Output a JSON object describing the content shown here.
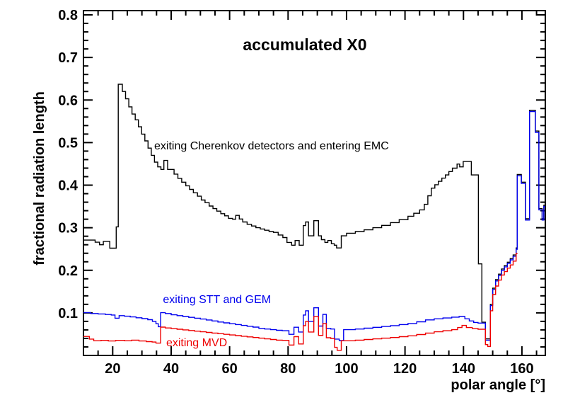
{
  "chart_data": {
    "type": "line",
    "subtype": "step-histogram",
    "title": "accumulated X0",
    "xlabel": "polar angle [°]",
    "ylabel": "fractional radiation length",
    "xlim": [
      10,
      168
    ],
    "ylim": [
      0,
      0.81
    ],
    "grid": false,
    "x_major_ticks": [
      20,
      40,
      60,
      80,
      100,
      120,
      140,
      160
    ],
    "x_minor_start": 15,
    "x_minor_step": 5,
    "x_minor_end": 165,
    "y_major_ticks": [
      0.1,
      0.2,
      0.3,
      0.4,
      0.5,
      0.6,
      0.7,
      0.8
    ],
    "y_minor_step": 0.02,
    "colors": {
      "black": "#000000",
      "blue": "#0000ee",
      "red": "#ee0000"
    },
    "series": [
      {
        "name": "exiting Cherenkov detectors and entering EMC",
        "color": "#000000",
        "xend": 168,
        "steps": [
          [
            10,
            0.271
          ],
          [
            14,
            0.266
          ],
          [
            15.5,
            0.26
          ],
          [
            16.8,
            0.268
          ],
          [
            19,
            0.252
          ],
          [
            21.2,
            0.302
          ],
          [
            21.9,
            0.637
          ],
          [
            23.3,
            0.62
          ],
          [
            24.4,
            0.603
          ],
          [
            25.5,
            0.584
          ],
          [
            26.6,
            0.567
          ],
          [
            27.7,
            0.5535
          ],
          [
            28.8,
            0.537
          ],
          [
            29.9,
            0.52
          ],
          [
            31,
            0.504
          ],
          [
            32.1,
            0.487
          ],
          [
            33.2,
            0.47
          ],
          [
            34.3,
            0.454
          ],
          [
            35.4,
            0.443
          ],
          [
            36.5,
            0.437
          ],
          [
            37.5,
            0.458
          ],
          [
            38.8,
            0.437
          ],
          [
            41,
            0.426
          ],
          [
            42.3,
            0.416
          ],
          [
            43.6,
            0.407
          ],
          [
            45,
            0.3985
          ],
          [
            46.3,
            0.39
          ],
          [
            47.6,
            0.382
          ],
          [
            49,
            0.374
          ],
          [
            50.3,
            0.365
          ],
          [
            51.6,
            0.359
          ],
          [
            53,
            0.351
          ],
          [
            54.3,
            0.345
          ],
          [
            55.6,
            0.339
          ],
          [
            57,
            0.333
          ],
          [
            58.3,
            0.328
          ],
          [
            59.6,
            0.322
          ],
          [
            61,
            0.32
          ],
          [
            62.1,
            0.329
          ],
          [
            63.3,
            0.3205
          ],
          [
            64.5,
            0.3135
          ],
          [
            66,
            0.308
          ],
          [
            67.5,
            0.304
          ],
          [
            69,
            0.3
          ],
          [
            70.5,
            0.297
          ],
          [
            72,
            0.294
          ],
          [
            73.5,
            0.291
          ],
          [
            75,
            0.289
          ],
          [
            76.6,
            0.283
          ],
          [
            78.2,
            0.277
          ],
          [
            79.6,
            0.2655
          ],
          [
            81.2,
            0.259
          ],
          [
            82.4,
            0.27
          ],
          [
            83.8,
            0.259
          ],
          [
            85.2,
            0.305
          ],
          [
            86,
            0.3135
          ],
          [
            87,
            0.281
          ],
          [
            88.8,
            0.3165
          ],
          [
            90.4,
            0.281
          ],
          [
            91.4,
            0.272
          ],
          [
            92.6,
            0.2655
          ],
          [
            93.6,
            0.27
          ],
          [
            94.8,
            0.2625
          ],
          [
            95.8,
            0.259
          ],
          [
            96.6,
            0.2525
          ],
          [
            98.2,
            0.281
          ],
          [
            100,
            0.287
          ],
          [
            103,
            0.291
          ],
          [
            106,
            0.295
          ],
          [
            109,
            0.3
          ],
          [
            112,
            0.3055
          ],
          [
            115,
            0.312
          ],
          [
            118,
            0.319
          ],
          [
            121,
            0.327
          ],
          [
            123,
            0.334
          ],
          [
            125,
            0.342
          ],
          [
            126.6,
            0.355
          ],
          [
            127.8,
            0.375
          ],
          [
            129,
            0.393
          ],
          [
            130.2,
            0.401
          ],
          [
            131.4,
            0.409
          ],
          [
            132.6,
            0.4165
          ],
          [
            133.8,
            0.424
          ],
          [
            135,
            0.432
          ],
          [
            136.2,
            0.44
          ],
          [
            137.8,
            0.4495
          ],
          [
            138.7,
            0.443
          ],
          [
            139.9,
            0.4555
          ],
          [
            142.7,
            0.424
          ],
          [
            145.1,
            0.215
          ],
          [
            146.3,
            0.078
          ],
          [
            147.5,
            0.039
          ],
          [
            149.2,
            0.12
          ],
          [
            150,
            0.158
          ],
          [
            151,
            0.178
          ],
          [
            152,
            0.191
          ],
          [
            153,
            0.203
          ],
          [
            154,
            0.211
          ],
          [
            155,
            0.219
          ],
          [
            156,
            0.2275
          ],
          [
            157,
            0.236
          ],
          [
            158,
            0.2525
          ],
          [
            158.4,
            0.425
          ],
          [
            159.8,
            0.407
          ],
          [
            161.2,
            0.321
          ],
          [
            162.6,
            0.576
          ],
          [
            164.6,
            0.527
          ],
          [
            165.8,
            0.345
          ],
          [
            166.9,
            0.321
          ],
          [
            167.5,
            0.353
          ]
        ]
      },
      {
        "name": "exiting STT and GEM",
        "color": "#0000ee",
        "xend": 168,
        "steps": [
          [
            10,
            0.1005
          ],
          [
            12.5,
            0.0985
          ],
          [
            15,
            0.0975
          ],
          [
            17.5,
            0.0962
          ],
          [
            19.5,
            0.095
          ],
          [
            20.8,
            0.0875
          ],
          [
            22.2,
            0.0935
          ],
          [
            24,
            0.0922
          ],
          [
            26,
            0.0905
          ],
          [
            28,
            0.0885
          ],
          [
            30,
            0.0865
          ],
          [
            32,
            0.084
          ],
          [
            33.6,
            0.08
          ],
          [
            34.8,
            0.0745
          ],
          [
            35.6,
            0.0675
          ],
          [
            36.4,
            0.1005
          ],
          [
            38,
            0.0985
          ],
          [
            40,
            0.0955
          ],
          [
            42,
            0.0935
          ],
          [
            44,
            0.0915
          ],
          [
            46,
            0.0895
          ],
          [
            48,
            0.0875
          ],
          [
            50,
            0.0855
          ],
          [
            52,
            0.0833
          ],
          [
            54,
            0.081
          ],
          [
            56,
            0.0785
          ],
          [
            58,
            0.0765
          ],
          [
            60,
            0.0745
          ],
          [
            62,
            0.0725
          ],
          [
            64,
            0.0705
          ],
          [
            66,
            0.0685
          ],
          [
            68,
            0.0665
          ],
          [
            70,
            0.0635
          ],
          [
            72,
            0.062
          ],
          [
            74,
            0.0605
          ],
          [
            76,
            0.059
          ],
          [
            78,
            0.058
          ],
          [
            80.3,
            0.0495
          ],
          [
            82,
            0.0662
          ],
          [
            83.6,
            0.055
          ],
          [
            85.2,
            0.095
          ],
          [
            86,
            0.105
          ],
          [
            87,
            0.08
          ],
          [
            88.8,
            0.112
          ],
          [
            90.4,
            0.069
          ],
          [
            91.9,
            0.0965
          ],
          [
            93.1,
            0.0635
          ],
          [
            94.6,
            0.062
          ],
          [
            95.9,
            0.0385
          ],
          [
            97.5,
            0.035
          ],
          [
            99,
            0.0605
          ],
          [
            103,
            0.062
          ],
          [
            106,
            0.064
          ],
          [
            109,
            0.066
          ],
          [
            112,
            0.068
          ],
          [
            115,
            0.07
          ],
          [
            118,
            0.0725
          ],
          [
            121,
            0.075
          ],
          [
            124,
            0.079
          ],
          [
            127,
            0.0835
          ],
          [
            130,
            0.086
          ],
          [
            133,
            0.088
          ],
          [
            136,
            0.09
          ],
          [
            138.5,
            0.0915
          ],
          [
            140.5,
            0.086
          ],
          [
            142,
            0.081
          ],
          [
            143.5,
            0.0775
          ],
          [
            145,
            0.076
          ],
          [
            147.5,
            0.036
          ],
          [
            149.2,
            0.117
          ],
          [
            150,
            0.155
          ],
          [
            151,
            0.175
          ],
          [
            152,
            0.188
          ],
          [
            153,
            0.2
          ],
          [
            154,
            0.208
          ],
          [
            155,
            0.216
          ],
          [
            156,
            0.2245
          ],
          [
            157,
            0.233
          ],
          [
            158,
            0.2495
          ],
          [
            158.4,
            0.422
          ],
          [
            159.8,
            0.404
          ],
          [
            161.2,
            0.318
          ],
          [
            162.6,
            0.573
          ],
          [
            164.6,
            0.524
          ],
          [
            165.8,
            0.342
          ],
          [
            166.9,
            0.318
          ],
          [
            167.5,
            0.35
          ]
        ]
      },
      {
        "name": "exiting MVD",
        "color": "#ee0000",
        "xend": 158.5,
        "steps": [
          [
            10,
            0.0445
          ],
          [
            12,
            0.0385
          ],
          [
            13.5,
            0.0345
          ],
          [
            16,
            0.0355
          ],
          [
            18.5,
            0.034
          ],
          [
            21,
            0.0355
          ],
          [
            24,
            0.0345
          ],
          [
            26.5,
            0.036
          ],
          [
            29,
            0.034
          ],
          [
            31.5,
            0.0325
          ],
          [
            33.5,
            0.0315
          ],
          [
            34.8,
            0.029
          ],
          [
            36.4,
            0.0665
          ],
          [
            38,
            0.0645
          ],
          [
            40,
            0.063
          ],
          [
            42,
            0.0615
          ],
          [
            44,
            0.06
          ],
          [
            46,
            0.0585
          ],
          [
            48,
            0.057
          ],
          [
            50,
            0.0555
          ],
          [
            52,
            0.054
          ],
          [
            54,
            0.0525
          ],
          [
            56,
            0.051
          ],
          [
            58,
            0.0495
          ],
          [
            60,
            0.048
          ],
          [
            62,
            0.0465
          ],
          [
            64,
            0.045
          ],
          [
            66,
            0.0435
          ],
          [
            68,
            0.042
          ],
          [
            70,
            0.0405
          ],
          [
            72,
            0.039
          ],
          [
            74,
            0.0375
          ],
          [
            76,
            0.036
          ],
          [
            78,
            0.0355
          ],
          [
            80.3,
            0.0245
          ],
          [
            82,
            0.044
          ],
          [
            83.6,
            0.027
          ],
          [
            85.2,
            0.07
          ],
          [
            86,
            0.08
          ],
          [
            87,
            0.055
          ],
          [
            88.8,
            0.091
          ],
          [
            90.4,
            0.047
          ],
          [
            91.9,
            0.075
          ],
          [
            93.1,
            0.0415
          ],
          [
            94.6,
            0.04
          ],
          [
            95.9,
            0.019
          ],
          [
            96.8,
            0.012
          ],
          [
            98.2,
            0.0345
          ],
          [
            103,
            0.036
          ],
          [
            106,
            0.0375
          ],
          [
            109,
            0.039
          ],
          [
            112,
            0.0405
          ],
          [
            115,
            0.042
          ],
          [
            118,
            0.044
          ],
          [
            121,
            0.046
          ],
          [
            124,
            0.049
          ],
          [
            127,
            0.0525
          ],
          [
            130,
            0.0555
          ],
          [
            133,
            0.058
          ],
          [
            136,
            0.0605
          ],
          [
            138,
            0.0655
          ],
          [
            139.5,
            0.0705
          ],
          [
            141,
            0.0655
          ],
          [
            143,
            0.063
          ],
          [
            145,
            0.0615
          ],
          [
            147.5,
            0.0255
          ],
          [
            148.3,
            0.021
          ],
          [
            149.2,
            0.105
          ],
          [
            150,
            0.143
          ],
          [
            151,
            0.163
          ],
          [
            152,
            0.177
          ],
          [
            153,
            0.189
          ],
          [
            154,
            0.197
          ],
          [
            155,
            0.205
          ],
          [
            156,
            0.2125
          ],
          [
            157,
            0.2215
          ],
          [
            158,
            0.2395
          ]
        ]
      }
    ],
    "annotations": [
      {
        "text": "exiting Cherenkov detectors and entering EMC",
        "color": "#000000",
        "x": 34.2,
        "y": 0.492,
        "size": 15.5
      },
      {
        "text": "exiting STT and GEM",
        "color": "#0000ee",
        "x": 37.2,
        "y": 0.131,
        "size": 16
      },
      {
        "text": "exiting MVD",
        "color": "#ee0000",
        "x": 38.3,
        "y": 0.03,
        "size": 16
      }
    ]
  }
}
